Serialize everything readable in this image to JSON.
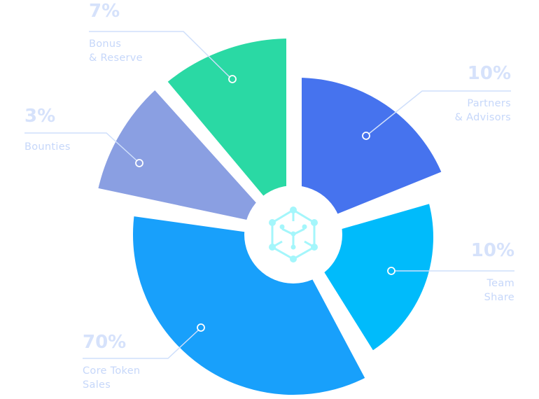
{
  "chart_data": {
    "type": "pie",
    "title": "",
    "slices": [
      {
        "key": "bonus",
        "percent_label": "7%",
        "label_lines": [
          "Bonus",
          "& Reserve"
        ],
        "value": 7,
        "color": "#2ad9a4"
      },
      {
        "key": "partners",
        "percent_label": "10%",
        "label_lines": [
          "Partners",
          "& Advisors"
        ],
        "value": 10,
        "color": "#4673ee"
      },
      {
        "key": "team",
        "percent_label": "10%",
        "label_lines": [
          "Team",
          "Share"
        ],
        "value": 10,
        "color": "#00bbfb"
      },
      {
        "key": "core",
        "percent_label": "70%",
        "label_lines": [
          "Core Token",
          "Sales"
        ],
        "value": 70,
        "color": "#18a0fb"
      },
      {
        "key": "bounties",
        "percent_label": "3%",
        "label_lines": [
          "Bounties"
        ],
        "value": 3,
        "color": "#8a9fe2"
      }
    ],
    "center_icon": "hexagon-network-icon",
    "legend": "none",
    "leader_line_color": "#cfdffb",
    "label_color": "#c6d7fa"
  }
}
